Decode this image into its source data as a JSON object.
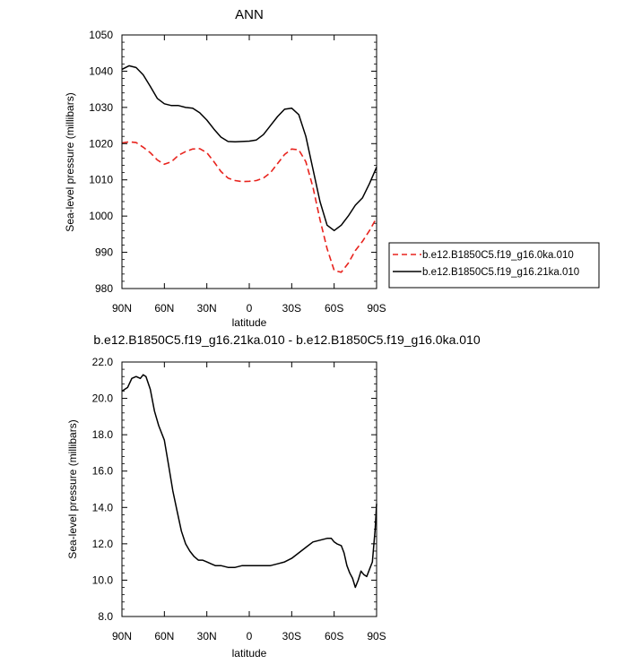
{
  "chart_data": [
    {
      "type": "line",
      "title": "ANN",
      "xlabel": "latitude",
      "ylabel": "Sea-level pressure (millibars)",
      "xlim": [
        90,
        -90
      ],
      "ylim": [
        980,
        1050
      ],
      "x_ticks": [
        90,
        60,
        30,
        0,
        -30,
        -60,
        -90
      ],
      "x_tick_labels": [
        "90N",
        "60N",
        "30N",
        "0",
        "30S",
        "60S",
        "90S"
      ],
      "y_ticks": [
        980,
        990,
        1000,
        1010,
        1020,
        1030,
        1040,
        1050
      ],
      "y_tick_labels": [
        "980",
        "990",
        "1000",
        "1010",
        "1020",
        "1030",
        "1040",
        "1050"
      ],
      "grid": false,
      "legend_position": "right, outside plot",
      "series": [
        {
          "name": "b.e12.B1850C5.f19_g16.0ka.010",
          "color": "#e8231d",
          "dash": "dashed",
          "x": [
            90,
            85,
            80,
            75,
            70,
            65,
            60,
            55,
            50,
            45,
            40,
            35,
            30,
            25,
            20,
            15,
            10,
            5,
            0,
            -5,
            -10,
            -15,
            -20,
            -25,
            -30,
            -35,
            -40,
            -45,
            -50,
            -55,
            -60,
            -65,
            -70,
            -75,
            -80,
            -85,
            -90
          ],
          "y": [
            1020.2,
            1020.5,
            1020.3,
            1019.0,
            1017.5,
            1015.5,
            1014.3,
            1015.0,
            1016.8,
            1017.8,
            1018.5,
            1018.6,
            1017.5,
            1015.0,
            1012.3,
            1010.5,
            1009.8,
            1009.5,
            1009.6,
            1009.8,
            1010.5,
            1012.0,
            1014.5,
            1017.0,
            1018.5,
            1018.3,
            1015.0,
            1008.0,
            999.0,
            991.0,
            985.0,
            984.5,
            987.0,
            990.5,
            993.0,
            996.0,
            999.5
          ]
        },
        {
          "name": "b.e12.B1850C5.f19_g16.21ka.010",
          "color": "#000000",
          "dash": "solid",
          "x": [
            90,
            85,
            80,
            75,
            70,
            65,
            60,
            55,
            50,
            45,
            40,
            35,
            30,
            25,
            20,
            15,
            10,
            5,
            0,
            -5,
            -10,
            -15,
            -20,
            -25,
            -30,
            -35,
            -40,
            -45,
            -50,
            -55,
            -60,
            -65,
            -70,
            -75,
            -80,
            -85,
            -90
          ],
          "y": [
            1040.5,
            1041.5,
            1041.0,
            1039.0,
            1035.8,
            1032.5,
            1031.0,
            1030.5,
            1030.5,
            1030.0,
            1029.8,
            1028.5,
            1026.5,
            1024.0,
            1021.8,
            1020.6,
            1020.5,
            1020.6,
            1020.7,
            1021.0,
            1022.5,
            1025.0,
            1027.5,
            1029.5,
            1029.8,
            1028.0,
            1022.0,
            1013.0,
            1004.0,
            997.5,
            996.0,
            997.5,
            1000.0,
            1003.0,
            1005.0,
            1009.0,
            1013.5
          ]
        }
      ]
    },
    {
      "type": "line",
      "title": "b.e12.B1850C5.f19_g16.21ka.010 - b.e12.B1850C5.f19_g16.0ka.010",
      "xlabel": "latitude",
      "ylabel": "Sea-level pressure (millibars)",
      "xlim": [
        90,
        -90
      ],
      "ylim": [
        8.0,
        22.0
      ],
      "x_ticks": [
        90,
        60,
        30,
        0,
        -30,
        -60,
        -90
      ],
      "x_tick_labels": [
        "90N",
        "60N",
        "30N",
        "0",
        "30S",
        "60S",
        "90S"
      ],
      "y_ticks": [
        8.0,
        10.0,
        12.0,
        14.0,
        16.0,
        18.0,
        20.0,
        22.0
      ],
      "y_tick_labels": [
        "8.0",
        "10.0",
        "12.0",
        "14.0",
        "16.0",
        "18.0",
        "20.0",
        "22.0"
      ],
      "grid": false,
      "series": [
        {
          "color": "#000000",
          "dash": "solid",
          "x": [
            90,
            86,
            83,
            80,
            77,
            75,
            73,
            70,
            67,
            64,
            60,
            57,
            54,
            51,
            48,
            45,
            42,
            39,
            36,
            33,
            30,
            27,
            24,
            20,
            15,
            10,
            5,
            0,
            -5,
            -10,
            -15,
            -20,
            -25,
            -30,
            -35,
            -40,
            -45,
            -50,
            -55,
            -58,
            -60,
            -62,
            -65,
            -67,
            -69,
            -71,
            -73,
            -75,
            -77,
            -79,
            -81,
            -83,
            -85,
            -87,
            -89,
            -90
          ],
          "y": [
            20.4,
            20.6,
            21.1,
            21.2,
            21.1,
            21.3,
            21.2,
            20.5,
            19.3,
            18.5,
            17.7,
            16.3,
            14.9,
            13.8,
            12.7,
            12.0,
            11.6,
            11.3,
            11.1,
            11.1,
            11.0,
            10.9,
            10.8,
            10.8,
            10.7,
            10.7,
            10.8,
            10.8,
            10.8,
            10.8,
            10.8,
            10.9,
            11.0,
            11.2,
            11.5,
            11.8,
            12.1,
            12.2,
            12.3,
            12.3,
            12.1,
            12.0,
            11.9,
            11.5,
            10.8,
            10.4,
            10.1,
            9.6,
            10.0,
            10.5,
            10.3,
            10.2,
            10.6,
            11.0,
            12.8,
            14.2
          ]
        }
      ]
    }
  ]
}
